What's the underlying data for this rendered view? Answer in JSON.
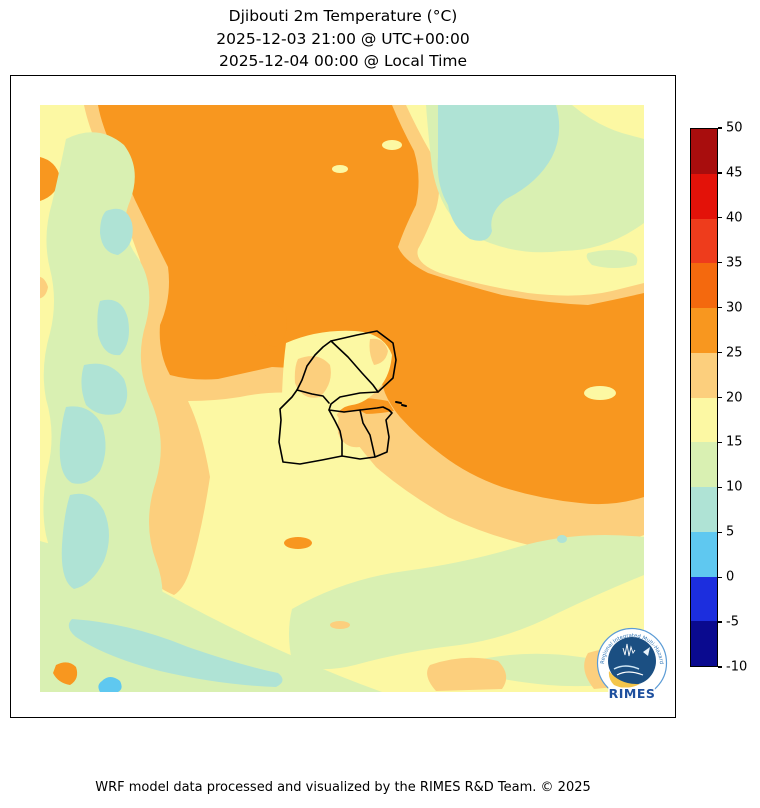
{
  "title": {
    "line1": "Djibouti 2m Temperature (°C)",
    "line2": "2025-12-03 21:00 @ UTC+00:00",
    "line3": "2025-12-04 00:00 @ Local Time"
  },
  "footer": {
    "text": "WRF model data processed and visualized by the RIMES R&D Team. © 2025"
  },
  "logo": {
    "label": "RIMES",
    "ring_text": "Regional Integrated Multi-Hazard Early Warning System"
  },
  "colorbar": {
    "units": "°C",
    "tick_labels": [
      "50",
      "45",
      "40",
      "35",
      "30",
      "25",
      "20",
      "15",
      "10",
      "5",
      "0",
      "-5",
      "-10"
    ],
    "order_top_to_bottom": [
      "t45",
      "t40",
      "t35",
      "t30",
      "t25",
      "t20",
      "t15",
      "t10",
      "t5",
      "t0",
      "tm5",
      "tm10"
    ]
  },
  "chart_data": {
    "type": "heatmap",
    "subtype": "filled-contour temperature map",
    "title": "Djibouti 2m Temperature (°C)",
    "valid_time_utc": "2025-12-03 21:00 @ UTC+00:00",
    "valid_time_local": "2025-12-04 00:00 @ Local Time",
    "units": "°C",
    "levels_celsius": [
      -10,
      -5,
      0,
      5,
      10,
      15,
      20,
      25,
      30,
      35,
      40,
      45,
      50
    ],
    "palette": {
      "tm10": "#0A0A8F",
      "tm5": "#1C2EDE",
      "t0": "#5FC8F0",
      "t5": "#AFE3D5",
      "t10": "#D9F0B2",
      "t15": "#FCF8A3",
      "t20": "#FCCF7D",
      "t25": "#F8971F",
      "t30": "#F4690E",
      "t35": "#EE3C1C",
      "t40": "#E31209",
      "t45": "#A80D0D",
      "note": "only -10..30 classes appear on the map; 30..50 appear on the colorbar only"
    },
    "legend_position": "right vertical colorbar",
    "grid": false,
    "map_regions": [
      {
        "area": "large diagonal mass from top-left across upper-centre and the whole right-centre (sea / hot lowlands)",
        "temp_range_c": "25-30"
      },
      {
        "area": "fringe bands around all 25-30 zones, vertical band left-of-centre, blobs on bottom edge",
        "temp_range_c": "20-25"
      },
      {
        "area": "background plains and most of Djibouti's interior",
        "temp_range_c": "15-20"
      },
      {
        "area": "western vertical strip, top-right highland patch, bottom diagonal bands",
        "temp_range_c": "10-15"
      },
      {
        "area": "cold pockets inside the west strip, large pocket at top-right, streak at bottom-left",
        "temp_range_c": "5-10"
      },
      {
        "area": "one small pocket on the bottom edge left-of-centre",
        "temp_range_c": "0-5"
      }
    ],
    "overlays": [
      "Djibouti national and regional administrative boundaries (black)",
      "RIMES logo bottom-right"
    ]
  }
}
